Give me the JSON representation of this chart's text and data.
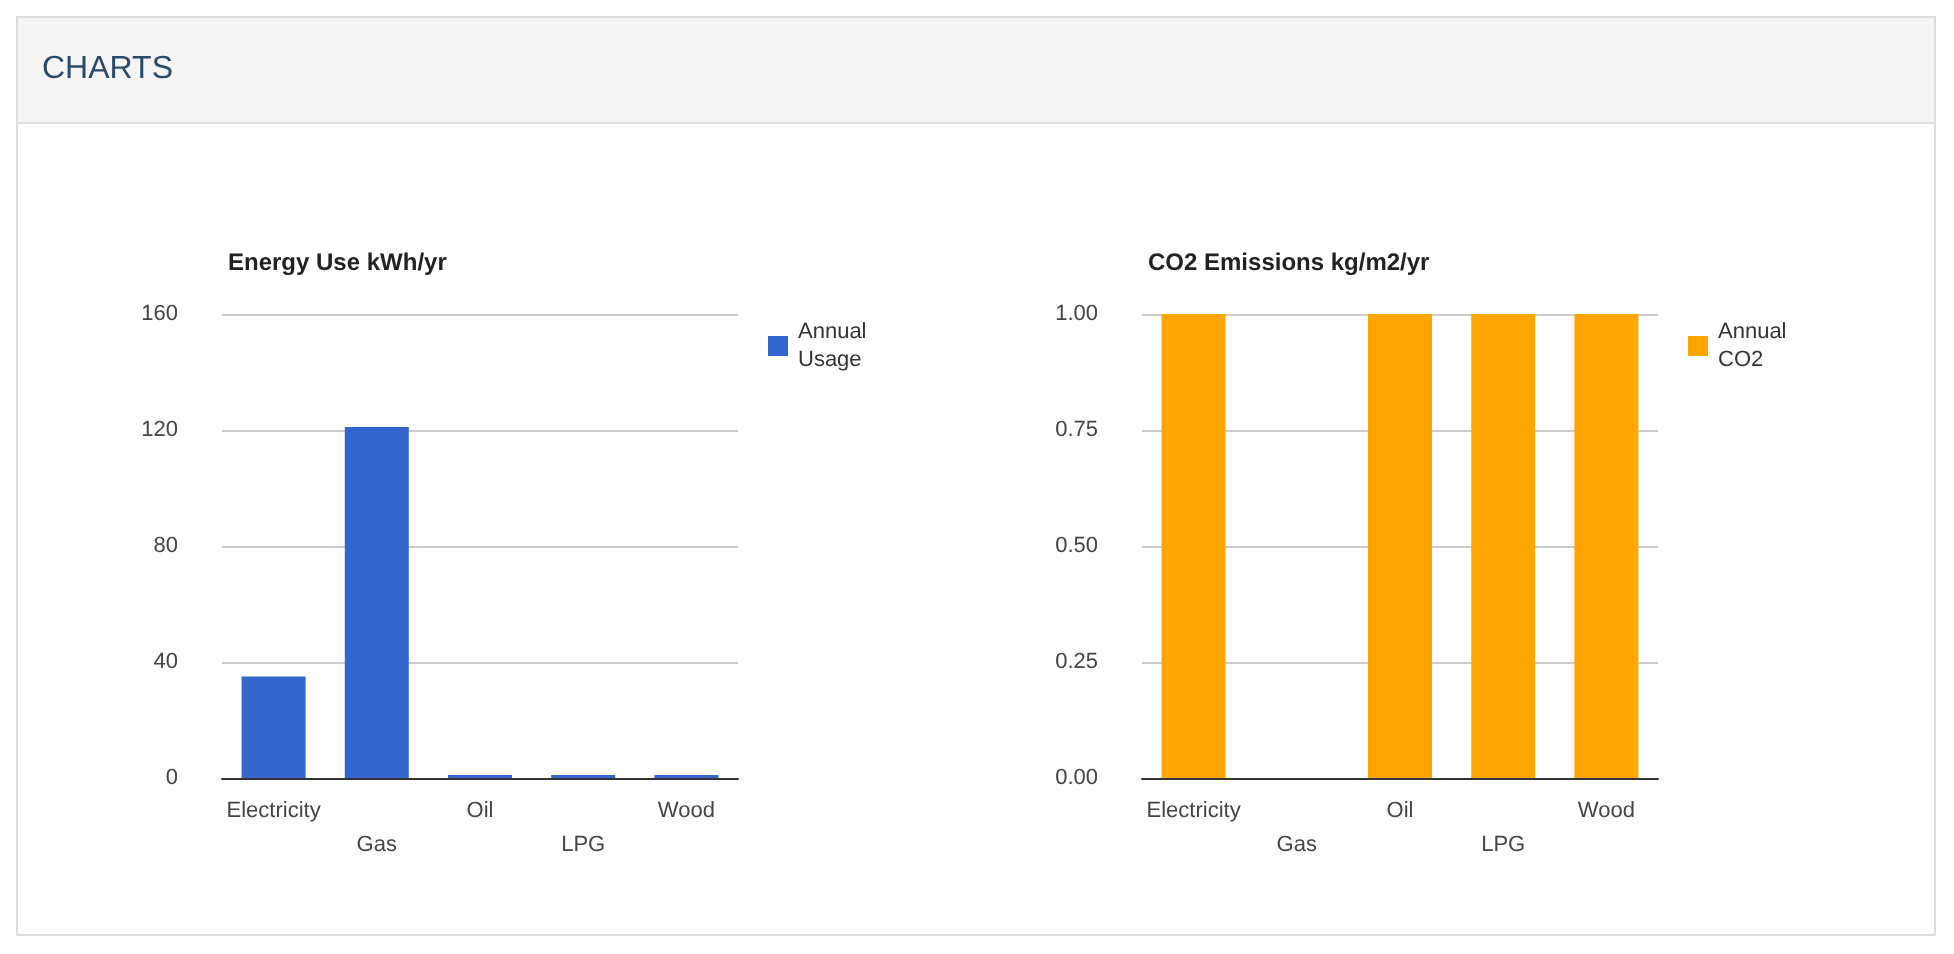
{
  "chart_data": [
    {
      "type": "other",
      "title": "CHARTS"
    },
    {
      "type": "bar",
      "title": "Energy Use kWh/yr",
      "categories": [
        "Electricity",
        "Gas",
        "Oil",
        "LPG",
        "Wood"
      ],
      "series": [
        {
          "name": "Annual Usage",
          "color": "#3366cc",
          "values": [
            35,
            121,
            1,
            1,
            1
          ]
        }
      ],
      "ylim": [
        0,
        160
      ],
      "yticks": [
        0,
        40,
        80,
        120,
        160
      ],
      "grid": "y",
      "legend": "top right"
    },
    {
      "type": "bar",
      "title": "CO2 Emissions kg/m2/yr",
      "categories": [
        "Electricity",
        "Gas",
        "Oil",
        "LPG",
        "Wood"
      ],
      "series": [
        {
          "name": "Annual CO2",
          "color": "#ffa500",
          "values": [
            1,
            0,
            1,
            1,
            1
          ]
        }
      ],
      "ylim": [
        0,
        1
      ],
      "yticks": [
        {
          "value": 0,
          "label": "0.00"
        },
        {
          "value": 0.25,
          "label": "0.25"
        },
        {
          "value": 0.5,
          "label": "0.50"
        },
        {
          "value": 0.75,
          "label": "0.75"
        },
        {
          "value": 1,
          "label": "1.00"
        }
      ],
      "grid": "y",
      "legend": "top right"
    }
  ]
}
